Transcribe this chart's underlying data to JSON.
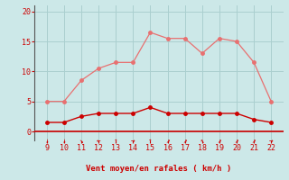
{
  "x": [
    9,
    10,
    11,
    12,
    13,
    14,
    15,
    16,
    17,
    18,
    19,
    20,
    21,
    22
  ],
  "rafales": [
    5.0,
    5.0,
    8.5,
    10.5,
    11.5,
    11.5,
    16.5,
    15.5,
    15.5,
    13.0,
    15.5,
    15.0,
    11.5,
    5.0
  ],
  "vent_moyen": [
    1.5,
    1.5,
    2.5,
    3.0,
    3.0,
    3.0,
    4.0,
    3.0,
    3.0,
    3.0,
    3.0,
    3.0,
    2.0,
    1.5
  ],
  "rafales_color": "#e87070",
  "vent_color": "#cc0000",
  "background_color": "#cce8e8",
  "grid_color": "#aacfcf",
  "axis_color": "#cc0000",
  "xlabel": "Vent moyen/en rafales ( km/h )",
  "ylim": [
    -1.5,
    21
  ],
  "yticks": [
    0,
    5,
    10,
    15,
    20
  ],
  "xticks": [
    9,
    10,
    11,
    12,
    13,
    14,
    15,
    16,
    17,
    18,
    19,
    20,
    21,
    22
  ],
  "wind_arrows": [
    "↓",
    "↓",
    "↘",
    "←",
    "↑",
    "→",
    "↑",
    "↗",
    "↗",
    "↖",
    "↗",
    "↗",
    "↗",
    "→"
  ],
  "xlim": [
    8.3,
    22.7
  ]
}
